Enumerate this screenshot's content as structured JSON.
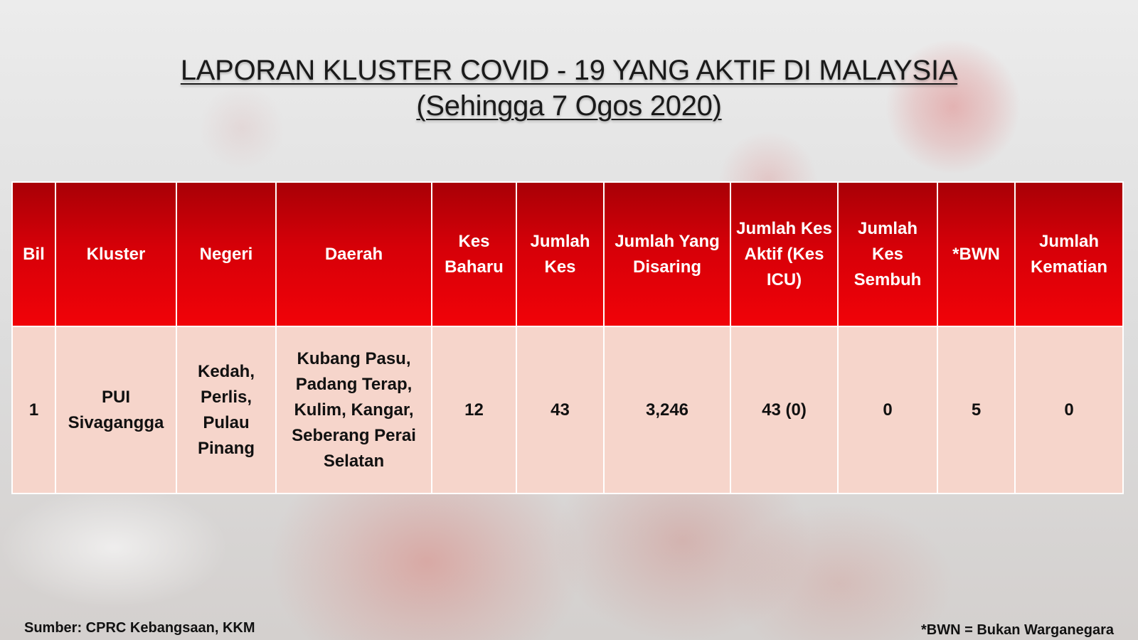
{
  "title": {
    "line1": "LAPORAN KLUSTER COVID - 19 YANG AKTIF DI MALAYSIA",
    "line2": "(Sehingga 7 Ogos 2020)"
  },
  "table": {
    "headers": [
      "Bil",
      "Kluster",
      "Negeri",
      "Daerah",
      "Kes Baharu",
      "Jumlah Kes",
      "Jumlah Yang Disaring",
      "Jumlah Kes Aktif (Kes ICU)",
      "Jumlah Kes Sembuh",
      "*BWN",
      "Jumlah Kematian"
    ],
    "rows": [
      {
        "bil": "1",
        "kluster": "PUI Sivagangga",
        "negeri": "Kedah, Perlis, Pulau Pinang",
        "daerah": "Kubang Pasu, Padang Terap, Kulim, Kangar, Seberang Perai Selatan",
        "kes_baharu": "12",
        "jumlah_kes": "43",
        "jumlah_disaring": "3,246",
        "jumlah_kes_aktif": "43 (0)",
        "jumlah_kes_sembuh": "0",
        "bwn": "5",
        "jumlah_kematian": "0"
      }
    ]
  },
  "footer": {
    "source": "Sumber: CPRC Kebangsaan, KKM",
    "note": "*BWN = Bukan Warganegara"
  },
  "colors": {
    "header_red": "#e60008",
    "header_dark_red": "#a80006",
    "row_pink": "#f6d5cb",
    "border": "#ffffff"
  }
}
